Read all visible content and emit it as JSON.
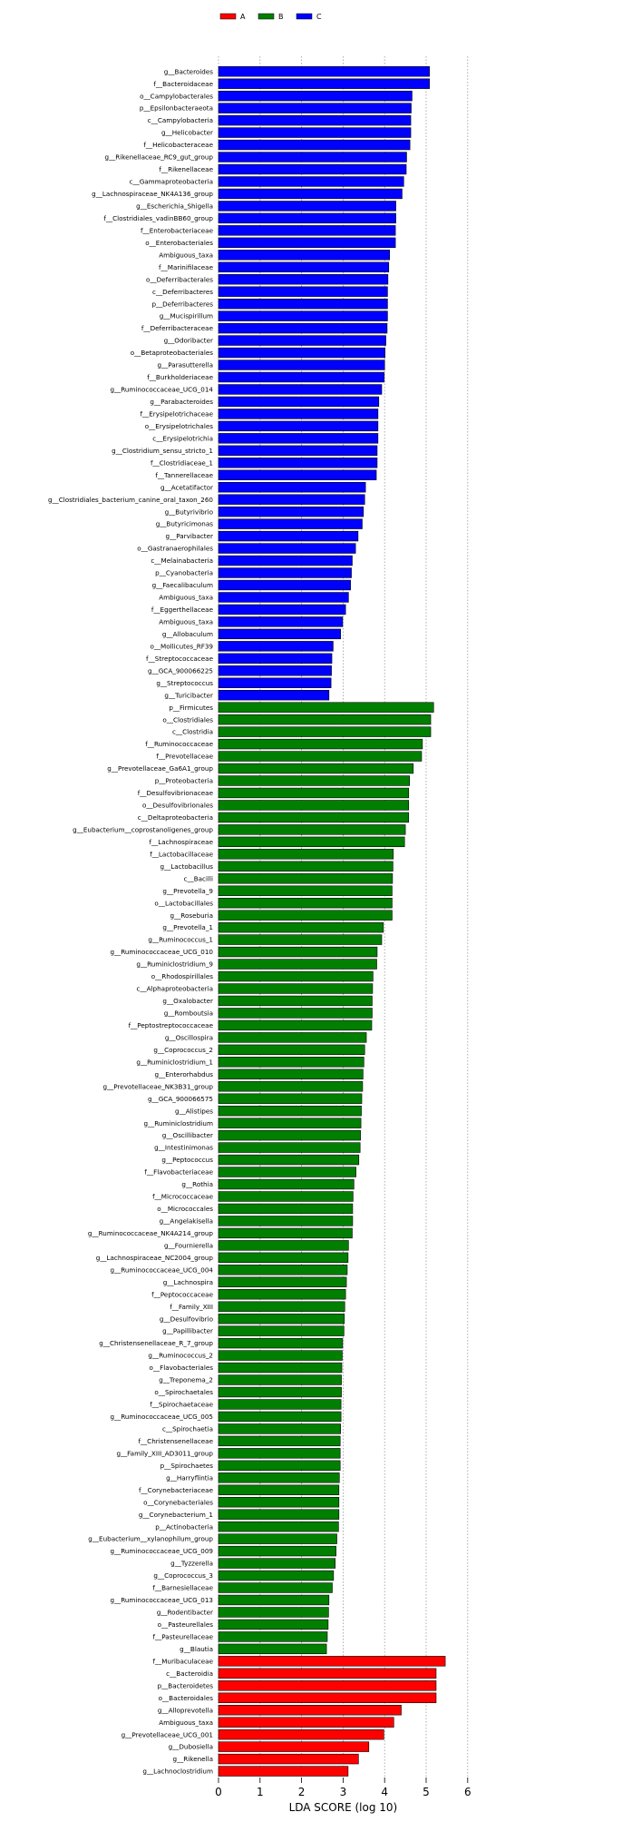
{
  "chart_data": {
    "type": "bar",
    "orientation": "horizontal",
    "title": "",
    "xlabel": "LDA SCORE (log 10)",
    "ylabel": "",
    "xlim": [
      0,
      6
    ],
    "xticks": [
      "0",
      "1",
      "2",
      "3",
      "4",
      "5",
      "6"
    ],
    "grid": "vertical dotted",
    "legend_position": "top-left",
    "series": [
      {
        "name": "A",
        "color": "#ff0000"
      },
      {
        "name": "B",
        "color": "#007f00"
      },
      {
        "name": "C",
        "color": "#0000ff"
      }
    ],
    "bars": [
      {
        "label": "g__Bacteroides",
        "value": 5.08,
        "group": "C"
      },
      {
        "label": "f__Bacteroidaceae",
        "value": 5.08,
        "group": "C"
      },
      {
        "label": "o__Campylobacterales",
        "value": 4.66,
        "group": "C"
      },
      {
        "label": "p__Epsilonbacteraeota",
        "value": 4.64,
        "group": "C"
      },
      {
        "label": "c__Campylobacteria",
        "value": 4.63,
        "group": "C"
      },
      {
        "label": "g__Helicobacter",
        "value": 4.63,
        "group": "C"
      },
      {
        "label": "f__Helicobacteraceae",
        "value": 4.61,
        "group": "C"
      },
      {
        "label": "g__Rikenellaceae_RC9_gut_group",
        "value": 4.53,
        "group": "C"
      },
      {
        "label": "f__Rikenellaceae",
        "value": 4.52,
        "group": "C"
      },
      {
        "label": "c__Gammaproteobacteria",
        "value": 4.46,
        "group": "C"
      },
      {
        "label": "g__Lachnospiraceae_NK4A136_group",
        "value": 4.42,
        "group": "C"
      },
      {
        "label": "g__Escherichia_Shigella",
        "value": 4.27,
        "group": "C"
      },
      {
        "label": "f__Clostridiales_vadinBB60_group",
        "value": 4.27,
        "group": "C"
      },
      {
        "label": "f__Enterobacteriaceae",
        "value": 4.26,
        "group": "C"
      },
      {
        "label": "o__Enterobacteriales",
        "value": 4.26,
        "group": "C"
      },
      {
        "label": "Ambiguous_taxa",
        "value": 4.12,
        "group": "C"
      },
      {
        "label": "f__Marinifilaceae",
        "value": 4.1,
        "group": "C"
      },
      {
        "label": "o__Deferribacterales",
        "value": 4.08,
        "group": "C"
      },
      {
        "label": "c__Deferribacteres",
        "value": 4.07,
        "group": "C"
      },
      {
        "label": "p__Deferribacteres",
        "value": 4.07,
        "group": "C"
      },
      {
        "label": "g__Mucispirillum",
        "value": 4.07,
        "group": "C"
      },
      {
        "label": "f__Deferribacteraceae",
        "value": 4.06,
        "group": "C"
      },
      {
        "label": "g__Odoribacter",
        "value": 4.03,
        "group": "C"
      },
      {
        "label": "o__Betaproteobacteriales",
        "value": 4.01,
        "group": "C"
      },
      {
        "label": "g__Parasutterella",
        "value": 4.0,
        "group": "C"
      },
      {
        "label": "f__Burkholderiaceae",
        "value": 3.99,
        "group": "C"
      },
      {
        "label": "g__Ruminococcaceae_UCG_014",
        "value": 3.93,
        "group": "C"
      },
      {
        "label": "g__Parabacteroides",
        "value": 3.86,
        "group": "C"
      },
      {
        "label": "f__Erysipelotrichaceae",
        "value": 3.84,
        "group": "C"
      },
      {
        "label": "o__Erysipelotrichales",
        "value": 3.84,
        "group": "C"
      },
      {
        "label": "c__Erysipelotrichia",
        "value": 3.84,
        "group": "C"
      },
      {
        "label": "g__Clostridium_sensu_stricto_1",
        "value": 3.82,
        "group": "C"
      },
      {
        "label": "f__Clostridiaceae_1",
        "value": 3.82,
        "group": "C"
      },
      {
        "label": "f__Tannerellaceae",
        "value": 3.8,
        "group": "C"
      },
      {
        "label": "g__Acetatifactor",
        "value": 3.54,
        "group": "C"
      },
      {
        "label": "g__Clostridiales_bacterium_canine_oral_taxon_260",
        "value": 3.52,
        "group": "C"
      },
      {
        "label": "g__Butyrivibrio",
        "value": 3.49,
        "group": "C"
      },
      {
        "label": "g__Butyricimonas",
        "value": 3.46,
        "group": "C"
      },
      {
        "label": "g__Parvibacter",
        "value": 3.36,
        "group": "C"
      },
      {
        "label": "o__Gastranaerophilales",
        "value": 3.3,
        "group": "C"
      },
      {
        "label": "c__Melainabacteria",
        "value": 3.22,
        "group": "C"
      },
      {
        "label": "p__Cyanobacteria",
        "value": 3.2,
        "group": "C"
      },
      {
        "label": "g__Faecalibaculum",
        "value": 3.18,
        "group": "C"
      },
      {
        "label": "Ambiguous_taxa",
        "value": 3.13,
        "group": "C"
      },
      {
        "label": "f__Eggerthellaceae",
        "value": 3.06,
        "group": "C"
      },
      {
        "label": "Ambiguous_taxa",
        "value": 2.99,
        "group": "C"
      },
      {
        "label": "g__Allobaculum",
        "value": 2.94,
        "group": "C"
      },
      {
        "label": "o__Mollicutes_RF39",
        "value": 2.76,
        "group": "C"
      },
      {
        "label": "f__Streptococcaceae",
        "value": 2.73,
        "group": "C"
      },
      {
        "label": "g__GCA_900066225",
        "value": 2.72,
        "group": "C"
      },
      {
        "label": "g__Streptococcus",
        "value": 2.71,
        "group": "C"
      },
      {
        "label": "g__Turicibacter",
        "value": 2.66,
        "group": "C"
      },
      {
        "label": "p__Firmicutes",
        "value": 5.18,
        "group": "B"
      },
      {
        "label": "o__Clostridiales",
        "value": 5.11,
        "group": "B"
      },
      {
        "label": "c__Clostridia",
        "value": 5.11,
        "group": "B"
      },
      {
        "label": "f__Ruminococcaceae",
        "value": 4.91,
        "group": "B"
      },
      {
        "label": "f__Prevotellaceae",
        "value": 4.89,
        "group": "B"
      },
      {
        "label": "g__Prevotellaceae_Ga6A1_group",
        "value": 4.69,
        "group": "B"
      },
      {
        "label": "p__Proteobacteria",
        "value": 4.6,
        "group": "B"
      },
      {
        "label": "f__Desulfovibrionaceae",
        "value": 4.58,
        "group": "B"
      },
      {
        "label": "o__Desulfovibrionales",
        "value": 4.58,
        "group": "B"
      },
      {
        "label": "c__Deltaproteobacteria",
        "value": 4.58,
        "group": "B"
      },
      {
        "label": "g__Eubacterium__coprostanoligenes_group",
        "value": 4.5,
        "group": "B"
      },
      {
        "label": "f__Lachnospiraceae",
        "value": 4.48,
        "group": "B"
      },
      {
        "label": "f__Lactobacillaceae",
        "value": 4.21,
        "group": "B"
      },
      {
        "label": "g__Lactobacillus",
        "value": 4.2,
        "group": "B"
      },
      {
        "label": "c__Bacilli",
        "value": 4.19,
        "group": "B"
      },
      {
        "label": "g__Prevotella_9",
        "value": 4.18,
        "group": "B"
      },
      {
        "label": "o__Lactobacillales",
        "value": 4.18,
        "group": "B"
      },
      {
        "label": "g__Roseburia",
        "value": 4.18,
        "group": "B"
      },
      {
        "label": "g__Prevotella_1",
        "value": 3.97,
        "group": "B"
      },
      {
        "label": "g__Ruminococcus_1",
        "value": 3.93,
        "group": "B"
      },
      {
        "label": "g__Ruminococcaceae_UCG_010",
        "value": 3.82,
        "group": "B"
      },
      {
        "label": "g__Ruminiclostridium_9",
        "value": 3.81,
        "group": "B"
      },
      {
        "label": "o__Rhodospirillales",
        "value": 3.72,
        "group": "B"
      },
      {
        "label": "c__Alphaproteobacteria",
        "value": 3.71,
        "group": "B"
      },
      {
        "label": "g__Oxalobacter",
        "value": 3.7,
        "group": "B"
      },
      {
        "label": "g__Romboutsia",
        "value": 3.7,
        "group": "B"
      },
      {
        "label": "f__Peptostreptococcaceae",
        "value": 3.69,
        "group": "B"
      },
      {
        "label": "g__Oscillospira",
        "value": 3.56,
        "group": "B"
      },
      {
        "label": "g__Coprococcus_2",
        "value": 3.52,
        "group": "B"
      },
      {
        "label": "g__Ruminiclostridium_1",
        "value": 3.5,
        "group": "B"
      },
      {
        "label": "g__Enterorhabdus",
        "value": 3.48,
        "group": "B"
      },
      {
        "label": "g__Prevotellaceae_NK3B31_group",
        "value": 3.47,
        "group": "B"
      },
      {
        "label": "g__GCA_900066575",
        "value": 3.45,
        "group": "B"
      },
      {
        "label": "g__Alistipes",
        "value": 3.44,
        "group": "B"
      },
      {
        "label": "g__Ruminiclostridium",
        "value": 3.43,
        "group": "B"
      },
      {
        "label": "g__Oscillibacter",
        "value": 3.42,
        "group": "B"
      },
      {
        "label": "g__Intestinimonas",
        "value": 3.41,
        "group": "B"
      },
      {
        "label": "g__Peptococcus",
        "value": 3.38,
        "group": "B"
      },
      {
        "label": "f__Flavobacteriaceae",
        "value": 3.31,
        "group": "B"
      },
      {
        "label": "g__Rothia",
        "value": 3.26,
        "group": "B"
      },
      {
        "label": "f__Micrococcaceae",
        "value": 3.24,
        "group": "B"
      },
      {
        "label": "o__Micrococcales",
        "value": 3.23,
        "group": "B"
      },
      {
        "label": "g__Angelakisella",
        "value": 3.23,
        "group": "B"
      },
      {
        "label": "g__Ruminococcaceae_NK4A214_group",
        "value": 3.22,
        "group": "B"
      },
      {
        "label": "g__Fournierella",
        "value": 3.13,
        "group": "B"
      },
      {
        "label": "g__Lachnospiraceae_NC2004_group",
        "value": 3.12,
        "group": "B"
      },
      {
        "label": "g__Ruminococcaceae_UCG_004",
        "value": 3.1,
        "group": "B"
      },
      {
        "label": "g__Lachnospira",
        "value": 3.08,
        "group": "B"
      },
      {
        "label": "f__Peptococcaceae",
        "value": 3.06,
        "group": "B"
      },
      {
        "label": "f__Family_XIII",
        "value": 3.04,
        "group": "B"
      },
      {
        "label": "g__Desulfovibrio",
        "value": 3.03,
        "group": "B"
      },
      {
        "label": "g__Papillibacter",
        "value": 3.02,
        "group": "B"
      },
      {
        "label": "g__Christensenellaceae_R_7_group",
        "value": 2.99,
        "group": "B"
      },
      {
        "label": "g__Ruminococcus_2",
        "value": 2.98,
        "group": "B"
      },
      {
        "label": "o__Flavobacteriales",
        "value": 2.97,
        "group": "B"
      },
      {
        "label": "g__Treponema_2",
        "value": 2.96,
        "group": "B"
      },
      {
        "label": "o__Spirochaetales",
        "value": 2.96,
        "group": "B"
      },
      {
        "label": "f__Spirochaetaceae",
        "value": 2.95,
        "group": "B"
      },
      {
        "label": "g__Ruminococcaceae_UCG_005",
        "value": 2.95,
        "group": "B"
      },
      {
        "label": "c__Spirochaetia",
        "value": 2.94,
        "group": "B"
      },
      {
        "label": "f__Christensenellaceae",
        "value": 2.93,
        "group": "B"
      },
      {
        "label": "g__Family_XIII_AD3011_group",
        "value": 2.93,
        "group": "B"
      },
      {
        "label": "p__Spirochaetes",
        "value": 2.93,
        "group": "B"
      },
      {
        "label": "g__Harryflintia",
        "value": 2.91,
        "group": "B"
      },
      {
        "label": "f__Corynebacteriaceae",
        "value": 2.9,
        "group": "B"
      },
      {
        "label": "o__Corynebacteriales",
        "value": 2.9,
        "group": "B"
      },
      {
        "label": "g__Corynebacterium_1",
        "value": 2.9,
        "group": "B"
      },
      {
        "label": "p__Actinobacteria",
        "value": 2.89,
        "group": "B"
      },
      {
        "label": "g__Eubacterium__xylanophilum_group",
        "value": 2.85,
        "group": "B"
      },
      {
        "label": "g__Ruminococcaceae_UCG_009",
        "value": 2.83,
        "group": "B"
      },
      {
        "label": "g__Tyzzerella",
        "value": 2.81,
        "group": "B"
      },
      {
        "label": "g__Coprococcus_3",
        "value": 2.77,
        "group": "B"
      },
      {
        "label": "f__Barnesiellaceae",
        "value": 2.74,
        "group": "B"
      },
      {
        "label": "g__Ruminococcaceae_UCG_013",
        "value": 2.66,
        "group": "B"
      },
      {
        "label": "g__Rodentibacter",
        "value": 2.65,
        "group": "B"
      },
      {
        "label": "o__Pasteurellales",
        "value": 2.64,
        "group": "B"
      },
      {
        "label": "f__Pasteurellaceae",
        "value": 2.62,
        "group": "B"
      },
      {
        "label": "g__Blautia",
        "value": 2.6,
        "group": "B"
      },
      {
        "label": "f__Muribaculaceae",
        "value": 5.46,
        "group": "A"
      },
      {
        "label": "c__Bacteroidia",
        "value": 5.24,
        "group": "A"
      },
      {
        "label": "p__Bacteroidetes",
        "value": 5.24,
        "group": "A"
      },
      {
        "label": "o__Bacteroidales",
        "value": 5.24,
        "group": "A"
      },
      {
        "label": "g__Alloprevotella",
        "value": 4.4,
        "group": "A"
      },
      {
        "label": "Ambiguous_taxa",
        "value": 4.22,
        "group": "A"
      },
      {
        "label": "g__Prevotellaceae_UCG_001",
        "value": 3.98,
        "group": "A"
      },
      {
        "label": "g__Dubosiella",
        "value": 3.62,
        "group": "A"
      },
      {
        "label": "g__Rikenella",
        "value": 3.37,
        "group": "A"
      },
      {
        "label": "g__Lachnoclostridium",
        "value": 3.12,
        "group": "A"
      }
    ]
  }
}
